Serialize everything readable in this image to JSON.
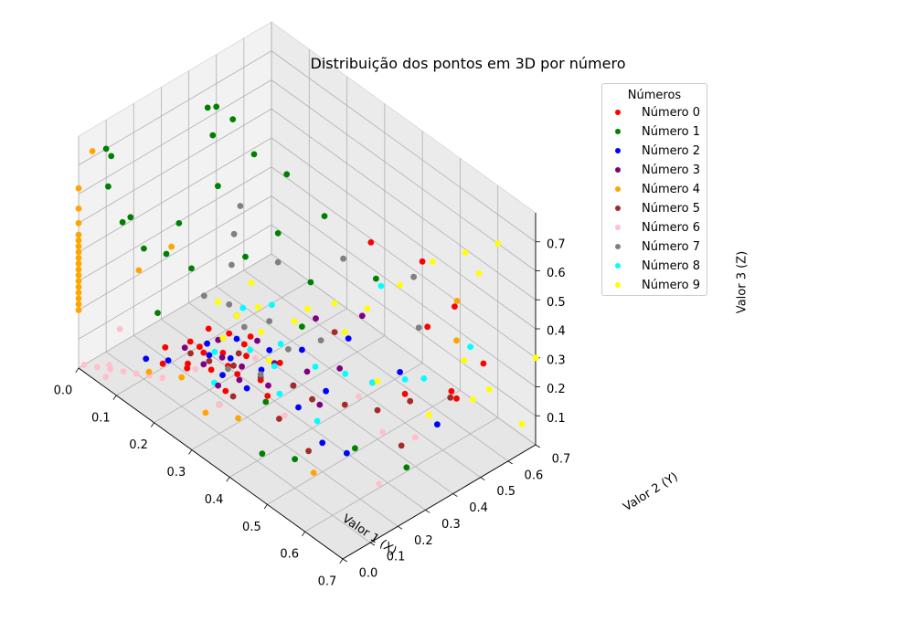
{
  "chart_data": {
    "type": "scatter",
    "title": "Distribuição dos pontos em 3D por número",
    "xlabel": "Valor 1 (X)",
    "ylabel": "Valor 2 (Y)",
    "zlabel": "Valor 3 (Z)",
    "xlim": [
      0.0,
      0.7
    ],
    "ylim": [
      0.0,
      0.7
    ],
    "zlim": [
      0.0,
      0.8
    ],
    "xticks": [
      "0.0",
      "0.1",
      "0.2",
      "0.3",
      "0.4",
      "0.5",
      "0.6",
      "0.7"
    ],
    "yticks": [
      "0.0",
      "0.1",
      "0.2",
      "0.3",
      "0.4",
      "0.5",
      "0.6",
      "0.7"
    ],
    "zticks": [
      "0.1",
      "0.2",
      "0.3",
      "0.4",
      "0.5",
      "0.6",
      "0.7"
    ],
    "grid": true,
    "legend_title": "Números",
    "legend_position": "top-right",
    "series": [
      {
        "name": "Número 0",
        "color": "#ff0000",
        "points": [
          [
            0.15,
            0.1,
            0.1
          ],
          [
            0.18,
            0.15,
            0.1
          ],
          [
            0.2,
            0.12,
            0.12
          ],
          [
            0.22,
            0.18,
            0.1
          ],
          [
            0.25,
            0.2,
            0.13
          ],
          [
            0.2,
            0.25,
            0.1
          ],
          [
            0.15,
            0.2,
            0.12
          ],
          [
            0.28,
            0.15,
            0.1
          ],
          [
            0.18,
            0.3,
            0.12
          ],
          [
            0.24,
            0.28,
            0.11
          ],
          [
            0.3,
            0.25,
            0.1
          ],
          [
            0.12,
            0.15,
            0.1
          ],
          [
            0.2,
            0.18,
            0.14
          ],
          [
            0.26,
            0.22,
            0.1
          ],
          [
            0.22,
            0.3,
            0.12
          ],
          [
            0.16,
            0.22,
            0.1
          ],
          [
            0.3,
            0.32,
            0.12
          ],
          [
            0.2,
            0.35,
            0.1
          ],
          [
            0.34,
            0.22,
            0.1
          ],
          [
            0.14,
            0.28,
            0.11
          ],
          [
            0.5,
            0.5,
            0.1
          ],
          [
            0.55,
            0.6,
            0.1
          ],
          [
            0.45,
            0.65,
            0.2
          ],
          [
            0.6,
            0.55,
            0.15
          ],
          [
            0.4,
            0.7,
            0.35
          ],
          [
            0.5,
            0.68,
            0.3
          ],
          [
            0.62,
            0.62,
            0.25
          ],
          [
            0.3,
            0.65,
            0.35
          ]
        ]
      },
      {
        "name": "Número 1",
        "color": "#008000",
        "points": [
          [
            0.05,
            0.05,
            0.75
          ],
          [
            0.02,
            0.08,
            0.6
          ],
          [
            0.0,
            0.1,
            0.7
          ],
          [
            0.05,
            0.12,
            0.5
          ],
          [
            0.1,
            0.1,
            0.45
          ],
          [
            0.08,
            0.05,
            0.55
          ],
          [
            0.12,
            0.2,
            0.5
          ],
          [
            0.15,
            0.3,
            0.6
          ],
          [
            0.1,
            0.35,
            0.7
          ],
          [
            0.05,
            0.4,
            0.72
          ],
          [
            0.08,
            0.45,
            0.68
          ],
          [
            0.0,
            0.5,
            0.62
          ],
          [
            0.1,
            0.5,
            0.55
          ],
          [
            0.2,
            0.45,
            0.4
          ],
          [
            0.15,
            0.55,
            0.5
          ],
          [
            0.25,
            0.55,
            0.45
          ],
          [
            0.05,
            0.25,
            0.3
          ],
          [
            0.1,
            0.15,
            0.2
          ],
          [
            0.08,
            0.3,
            0.25
          ],
          [
            0.15,
            0.4,
            0.3
          ],
          [
            0.2,
            0.3,
            0.2
          ],
          [
            0.3,
            0.4,
            0.2
          ],
          [
            0.4,
            0.3,
            0.1
          ],
          [
            0.5,
            0.1,
            0.1
          ],
          [
            0.55,
            0.25,
            0.1
          ],
          [
            0.65,
            0.3,
            0.1
          ],
          [
            0.45,
            0.05,
            0.1
          ],
          [
            0.35,
            0.2,
            0.1
          ],
          [
            0.3,
            0.1,
            0.1
          ],
          [
            0.25,
            0.5,
            0.25
          ],
          [
            0.35,
            0.6,
            0.3
          ]
        ]
      },
      {
        "name": "Número 2",
        "color": "#0000ff",
        "points": [
          [
            0.2,
            0.2,
            0.12
          ],
          [
            0.22,
            0.25,
            0.1
          ],
          [
            0.25,
            0.18,
            0.11
          ],
          [
            0.18,
            0.22,
            0.13
          ],
          [
            0.28,
            0.28,
            0.1
          ],
          [
            0.15,
            0.12,
            0.1
          ],
          [
            0.3,
            0.2,
            0.1
          ],
          [
            0.2,
            0.3,
            0.12
          ],
          [
            0.25,
            0.35,
            0.1
          ],
          [
            0.35,
            0.3,
            0.1
          ],
          [
            0.4,
            0.35,
            0.1
          ],
          [
            0.3,
            0.4,
            0.12
          ],
          [
            0.45,
            0.55,
            0.1
          ],
          [
            0.5,
            0.2,
            0.1
          ],
          [
            0.55,
            0.22,
            0.1
          ],
          [
            0.6,
            0.48,
            0.1
          ],
          [
            0.35,
            0.5,
            0.15
          ],
          [
            0.12,
            0.08,
            0.1
          ],
          [
            0.4,
            0.25,
            0.1
          ]
        ]
      },
      {
        "name": "Número 3",
        "color": "#800080",
        "points": [
          [
            0.2,
            0.18,
            0.1
          ],
          [
            0.22,
            0.22,
            0.12
          ],
          [
            0.25,
            0.25,
            0.1
          ],
          [
            0.28,
            0.2,
            0.11
          ],
          [
            0.18,
            0.26,
            0.12
          ],
          [
            0.3,
            0.3,
            0.13
          ],
          [
            0.32,
            0.25,
            0.1
          ],
          [
            0.24,
            0.32,
            0.14
          ],
          [
            0.35,
            0.35,
            0.12
          ],
          [
            0.4,
            0.4,
            0.15
          ],
          [
            0.3,
            0.45,
            0.2
          ],
          [
            0.26,
            0.15,
            0.1
          ],
          [
            0.15,
            0.18,
            0.11
          ],
          [
            0.42,
            0.3,
            0.1
          ],
          [
            0.35,
            0.55,
            0.2
          ],
          [
            0.45,
            0.45,
            0.12
          ]
        ]
      },
      {
        "name": "Número 4",
        "color": "#ffa500",
        "points": [
          [
            0.0,
            0.0,
            0.2
          ],
          [
            0.0,
            0.0,
            0.22
          ],
          [
            0.0,
            0.0,
            0.24
          ],
          [
            0.0,
            0.0,
            0.26
          ],
          [
            0.0,
            0.0,
            0.28
          ],
          [
            0.0,
            0.0,
            0.3
          ],
          [
            0.0,
            0.0,
            0.32
          ],
          [
            0.0,
            0.0,
            0.34
          ],
          [
            0.0,
            0.0,
            0.36
          ],
          [
            0.0,
            0.0,
            0.38
          ],
          [
            0.0,
            0.0,
            0.4
          ],
          [
            0.0,
            0.0,
            0.42
          ],
          [
            0.0,
            0.0,
            0.44
          ],
          [
            0.0,
            0.0,
            0.46
          ],
          [
            0.0,
            0.0,
            0.5
          ],
          [
            0.0,
            0.0,
            0.55
          ],
          [
            0.0,
            0.0,
            0.62
          ],
          [
            0.0,
            0.05,
            0.72
          ],
          [
            0.1,
            0.2,
            0.4
          ],
          [
            0.15,
            0.05,
            0.1
          ],
          [
            0.35,
            0.1,
            0.1
          ],
          [
            0.3,
            0.05,
            0.1
          ],
          [
            0.55,
            0.62,
            0.4
          ],
          [
            0.6,
            0.55,
            0.35
          ],
          [
            0.05,
            0.15,
            0.3
          ],
          [
            0.55,
            0.1,
            0.1
          ],
          [
            0.2,
            0.1,
            0.1
          ]
        ]
      },
      {
        "name": "Número 5",
        "color": "#a52a2a",
        "points": [
          [
            0.2,
            0.2,
            0.1
          ],
          [
            0.25,
            0.22,
            0.12
          ],
          [
            0.22,
            0.28,
            0.1
          ],
          [
            0.3,
            0.25,
            0.11
          ],
          [
            0.35,
            0.3,
            0.1
          ],
          [
            0.18,
            0.16,
            0.13
          ],
          [
            0.4,
            0.3,
            0.1
          ],
          [
            0.45,
            0.35,
            0.1
          ],
          [
            0.5,
            0.4,
            0.1
          ],
          [
            0.6,
            0.35,
            0.1
          ],
          [
            0.35,
            0.45,
            0.2
          ],
          [
            0.3,
            0.15,
            0.1
          ],
          [
            0.5,
            0.15,
            0.1
          ],
          [
            0.55,
            0.45,
            0.15
          ],
          [
            0.62,
            0.5,
            0.2
          ],
          [
            0.4,
            0.18,
            0.1
          ]
        ]
      },
      {
        "name": "Número 6",
        "color": "#ffc0cb",
        "points": [
          [
            0.0,
            0.02,
            0.0
          ],
          [
            0.02,
            0.04,
            0.0
          ],
          [
            0.04,
            0.06,
            0.0
          ],
          [
            0.06,
            0.08,
            0.0
          ],
          [
            0.08,
            0.1,
            0.0
          ],
          [
            0.05,
            0.03,
            0.0
          ],
          [
            0.03,
            0.07,
            0.0
          ],
          [
            0.1,
            0.12,
            0.0
          ],
          [
            0.12,
            0.14,
            0.0
          ],
          [
            0.0,
            0.15,
            0.05
          ],
          [
            0.2,
            0.15,
            0.1
          ],
          [
            0.25,
            0.3,
            0.1
          ],
          [
            0.4,
            0.2,
            0.1
          ],
          [
            0.45,
            0.4,
            0.1
          ],
          [
            0.6,
            0.4,
            0.1
          ],
          [
            0.65,
            0.2,
            0.1
          ],
          [
            0.55,
            0.35,
            0.1
          ],
          [
            0.3,
            0.1,
            0.1
          ]
        ]
      },
      {
        "name": "Número 7",
        "color": "#808080",
        "points": [
          [
            0.2,
            0.25,
            0.15
          ],
          [
            0.22,
            0.3,
            0.18
          ],
          [
            0.25,
            0.35,
            0.2
          ],
          [
            0.18,
            0.3,
            0.22
          ],
          [
            0.15,
            0.35,
            0.3
          ],
          [
            0.12,
            0.4,
            0.35
          ],
          [
            0.2,
            0.45,
            0.3
          ],
          [
            0.25,
            0.2,
            0.12
          ],
          [
            0.3,
            0.35,
            0.15
          ],
          [
            0.35,
            0.4,
            0.2
          ],
          [
            0.15,
            0.25,
            0.25
          ],
          [
            0.1,
            0.45,
            0.4
          ],
          [
            0.3,
            0.55,
            0.35
          ],
          [
            0.45,
            0.6,
            0.4
          ],
          [
            0.5,
            0.55,
            0.3
          ],
          [
            0.3,
            0.25,
            0.12
          ]
        ]
      },
      {
        "name": "Número 8",
        "color": "#00ffff",
        "points": [
          [
            0.2,
            0.22,
            0.12
          ],
          [
            0.25,
            0.28,
            0.14
          ],
          [
            0.3,
            0.3,
            0.12
          ],
          [
            0.28,
            0.35,
            0.15
          ],
          [
            0.35,
            0.38,
            0.12
          ],
          [
            0.4,
            0.42,
            0.12
          ],
          [
            0.22,
            0.4,
            0.2
          ],
          [
            0.18,
            0.35,
            0.18
          ],
          [
            0.45,
            0.45,
            0.12
          ],
          [
            0.5,
            0.5,
            0.15
          ],
          [
            0.55,
            0.5,
            0.2
          ],
          [
            0.6,
            0.6,
            0.3
          ],
          [
            0.4,
            0.55,
            0.35
          ],
          [
            0.25,
            0.15,
            0.1
          ],
          [
            0.35,
            0.25,
            0.1
          ],
          [
            0.45,
            0.25,
            0.1
          ]
        ]
      },
      {
        "name": "Número 9",
        "color": "#ffff00",
        "points": [
          [
            0.2,
            0.3,
            0.2
          ],
          [
            0.22,
            0.35,
            0.22
          ],
          [
            0.25,
            0.32,
            0.18
          ],
          [
            0.18,
            0.38,
            0.25
          ],
          [
            0.28,
            0.4,
            0.2
          ],
          [
            0.3,
            0.42,
            0.25
          ],
          [
            0.15,
            0.3,
            0.2
          ],
          [
            0.35,
            0.45,
            0.3
          ],
          [
            0.4,
            0.5,
            0.3
          ],
          [
            0.45,
            0.55,
            0.4
          ],
          [
            0.5,
            0.6,
            0.5
          ],
          [
            0.55,
            0.65,
            0.55
          ],
          [
            0.6,
            0.7,
            0.6
          ],
          [
            0.62,
            0.55,
            0.3
          ],
          [
            0.65,
            0.6,
            0.2
          ],
          [
            0.68,
            0.5,
            0.25
          ],
          [
            0.7,
            0.65,
            0.1
          ],
          [
            0.55,
            0.7,
            0.45
          ],
          [
            0.6,
            0.45,
            0.15
          ],
          [
            0.5,
            0.4,
            0.2
          ],
          [
            0.45,
            0.35,
            0.35
          ],
          [
            0.7,
            0.7,
            0.3
          ],
          [
            0.3,
            0.28,
            0.15
          ],
          [
            0.2,
            0.25,
            0.15
          ]
        ]
      }
    ]
  }
}
